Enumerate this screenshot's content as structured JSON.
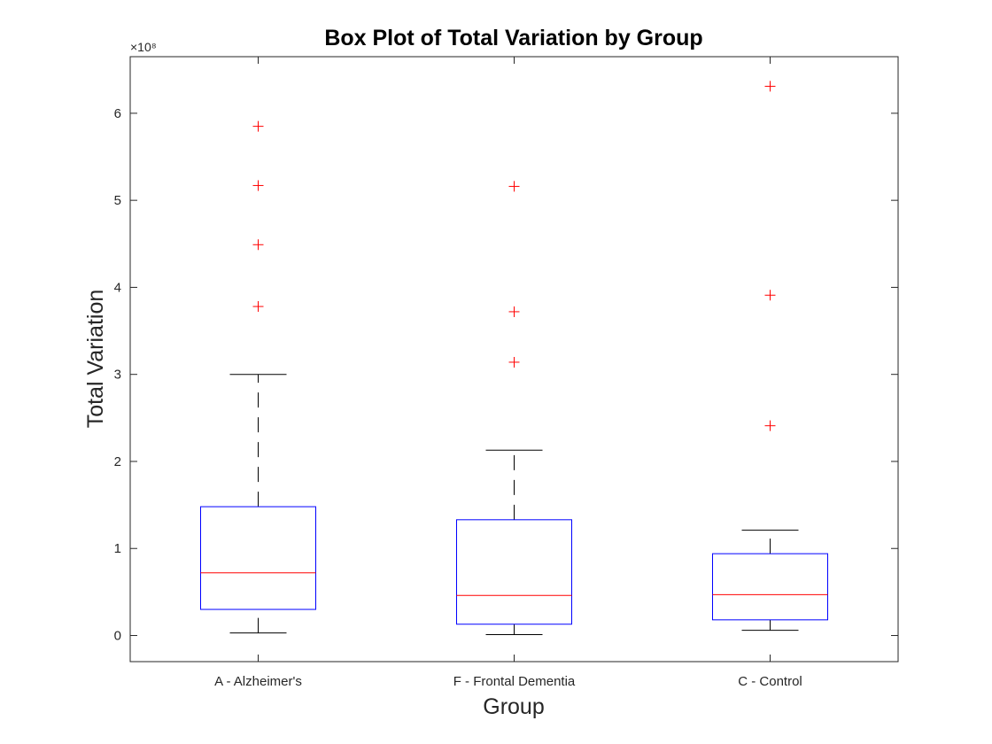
{
  "chart_data": {
    "type": "box",
    "title": "Box Plot of Total Variation by Group",
    "xlabel": "Group",
    "ylabel": "Total Variation",
    "y_exponent_label": "×10⁸",
    "y_scale_factor": 100000000,
    "ylim": [
      -0.3,
      6.65
    ],
    "yticks": [
      0,
      1,
      2,
      3,
      4,
      5,
      6
    ],
    "categories": [
      "A - Alzheimer's",
      "F - Frontal Dementia",
      "C - Control"
    ],
    "boxes": [
      {
        "group": "A - Alzheimer's",
        "whisker_low": 0.03,
        "q1": 0.3,
        "median": 0.72,
        "q3": 1.48,
        "whisker_high": 3.0,
        "outliers": [
          3.78,
          4.49,
          5.17,
          5.85
        ]
      },
      {
        "group": "F - Frontal Dementia",
        "whisker_low": 0.01,
        "q1": 0.13,
        "median": 0.46,
        "q3": 1.33,
        "whisker_high": 2.13,
        "outliers": [
          3.14,
          3.72,
          5.16
        ]
      },
      {
        "group": "C - Control",
        "whisker_low": 0.06,
        "q1": 0.18,
        "median": 0.47,
        "q3": 0.94,
        "whisker_high": 1.21,
        "outliers": [
          2.41,
          3.91,
          6.31
        ]
      }
    ],
    "colors": {
      "box": "#0000ff",
      "median": "#ff0000",
      "whisker": "#000000",
      "outlier": "#ff0000",
      "axis": "#262626"
    },
    "grid": false,
    "box_frame": true
  }
}
